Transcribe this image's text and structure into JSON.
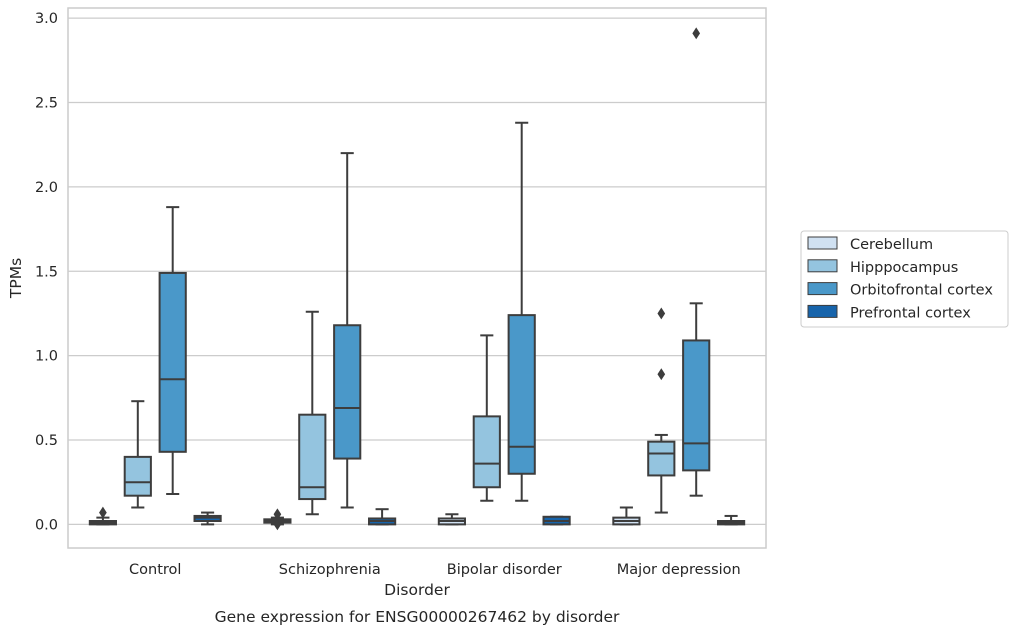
{
  "chart_data": {
    "type": "box",
    "xlabel": "Disorder",
    "ylabel": "TPMs",
    "caption": "Gene expression for ENSG00000267462 by disorder",
    "ylim": [
      -0.14,
      3.06
    ],
    "yticks": [
      "0.0",
      "0.5",
      "1.0",
      "1.5",
      "2.0",
      "2.5",
      "3.0"
    ],
    "grid": "horizontal",
    "legend_position": "right",
    "categories": [
      "Control",
      "Schizophrenia",
      "Bipolar disorder",
      "Major depression"
    ],
    "series": [
      {
        "name": "Cerebellum",
        "color": "#d0e1f2",
        "boxes": [
          {
            "whisker_low": 0.0,
            "q1": 0.0,
            "median": 0.01,
            "q3": 0.02,
            "whisker_high": 0.04,
            "outliers": [
              0.07
            ]
          },
          {
            "whisker_low": 0.0,
            "q1": 0.01,
            "median": 0.02,
            "q3": 0.03,
            "whisker_high": 0.04,
            "outliers": [
              0.06,
              0.0
            ]
          },
          {
            "whisker_low": 0.0,
            "q1": 0.0,
            "median": 0.02,
            "q3": 0.035,
            "whisker_high": 0.06,
            "outliers": []
          },
          {
            "whisker_low": 0.0,
            "q1": 0.0,
            "median": 0.02,
            "q3": 0.04,
            "whisker_high": 0.1,
            "outliers": []
          }
        ]
      },
      {
        "name": "Hipppocampus",
        "color": "#94c4df",
        "boxes": [
          {
            "whisker_low": 0.1,
            "q1": 0.17,
            "median": 0.25,
            "q3": 0.4,
            "whisker_high": 0.73,
            "outliers": []
          },
          {
            "whisker_low": 0.06,
            "q1": 0.15,
            "median": 0.22,
            "q3": 0.65,
            "whisker_high": 1.26,
            "outliers": []
          },
          {
            "whisker_low": 0.14,
            "q1": 0.22,
            "median": 0.36,
            "q3": 0.64,
            "whisker_high": 1.12,
            "outliers": []
          },
          {
            "whisker_low": 0.07,
            "q1": 0.29,
            "median": 0.42,
            "q3": 0.49,
            "whisker_high": 0.53,
            "outliers": [
              1.25,
              0.89
            ]
          }
        ]
      },
      {
        "name": "Orbitofrontal cortex",
        "color": "#4a98c9",
        "boxes": [
          {
            "whisker_low": 0.18,
            "q1": 0.43,
            "median": 0.86,
            "q3": 1.49,
            "whisker_high": 1.88,
            "outliers": []
          },
          {
            "whisker_low": 0.1,
            "q1": 0.39,
            "median": 0.69,
            "q3": 1.18,
            "whisker_high": 2.2,
            "outliers": []
          },
          {
            "whisker_low": 0.14,
            "q1": 0.3,
            "median": 0.46,
            "q3": 1.24,
            "whisker_high": 2.38,
            "outliers": []
          },
          {
            "whisker_low": 0.17,
            "q1": 0.32,
            "median": 0.48,
            "q3": 1.09,
            "whisker_high": 1.31,
            "outliers": [
              2.91
            ]
          }
        ]
      },
      {
        "name": "Prefrontal cortex",
        "color": "#1764ab",
        "boxes": [
          {
            "whisker_low": 0.0,
            "q1": 0.02,
            "median": 0.04,
            "q3": 0.05,
            "whisker_high": 0.07,
            "outliers": []
          },
          {
            "whisker_low": 0.0,
            "q1": 0.0,
            "median": 0.02,
            "q3": 0.035,
            "whisker_high": 0.09,
            "outliers": []
          },
          {
            "whisker_low": 0.0,
            "q1": 0.0,
            "median": 0.02,
            "q3": 0.045,
            "whisker_high": 0.045,
            "outliers": []
          },
          {
            "whisker_low": 0.0,
            "q1": 0.0,
            "median": 0.01,
            "q3": 0.02,
            "whisker_high": 0.05,
            "outliers": []
          }
        ]
      }
    ],
    "colors": {
      "grid": "#cccccc",
      "frame": "#cccccc",
      "box_edge": "#3d3d3d",
      "text": "#262626"
    }
  }
}
